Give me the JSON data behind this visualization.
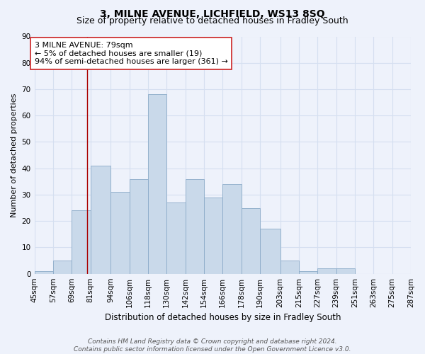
{
  "title": "3, MILNE AVENUE, LICHFIELD, WS13 8SQ",
  "subtitle": "Size of property relative to detached houses in Fradley South",
  "xlabel": "Distribution of detached houses by size in Fradley South",
  "ylabel": "Number of detached properties",
  "bin_edges": [
    45,
    57,
    69,
    81,
    94,
    106,
    118,
    130,
    142,
    154,
    166,
    178,
    190,
    203,
    215,
    227,
    239,
    251,
    263,
    275,
    287
  ],
  "bin_labels": [
    "45sqm",
    "57sqm",
    "69sqm",
    "81sqm",
    "94sqm",
    "106sqm",
    "118sqm",
    "130sqm",
    "142sqm",
    "154sqm",
    "166sqm",
    "178sqm",
    "190sqm",
    "203sqm",
    "215sqm",
    "227sqm",
    "239sqm",
    "251sqm",
    "263sqm",
    "275sqm",
    "287sqm"
  ],
  "counts": [
    1,
    5,
    24,
    41,
    31,
    36,
    68,
    27,
    36,
    29,
    34,
    25,
    17,
    5,
    1,
    2,
    2,
    0,
    0,
    0
  ],
  "bar_facecolor": "#c9d9ea",
  "bar_edgecolor": "#8aaac8",
  "grid_color": "#d5dff0",
  "property_line_x": 79,
  "property_line_color": "#aa0000",
  "annotation_line1": "3 MILNE AVENUE: 79sqm",
  "annotation_line2": "← 5% of detached houses are smaller (19)",
  "annotation_line3": "94% of semi-detached houses are larger (361) →",
  "annotation_box_facecolor": "#ffffff",
  "annotation_box_edgecolor": "#cc2222",
  "ylim": [
    0,
    90
  ],
  "yticks": [
    0,
    10,
    20,
    30,
    40,
    50,
    60,
    70,
    80,
    90
  ],
  "footer_text": "Contains HM Land Registry data © Crown copyright and database right 2024.\nContains public sector information licensed under the Open Government Licence v3.0.",
  "background_color": "#eef2fb",
  "plot_bg_color": "#eef2fb",
  "title_fontsize": 10,
  "subtitle_fontsize": 9,
  "ylabel_fontsize": 8,
  "xlabel_fontsize": 8.5,
  "tick_fontsize": 7.5,
  "annotation_fontsize": 8,
  "footer_fontsize": 6.5
}
